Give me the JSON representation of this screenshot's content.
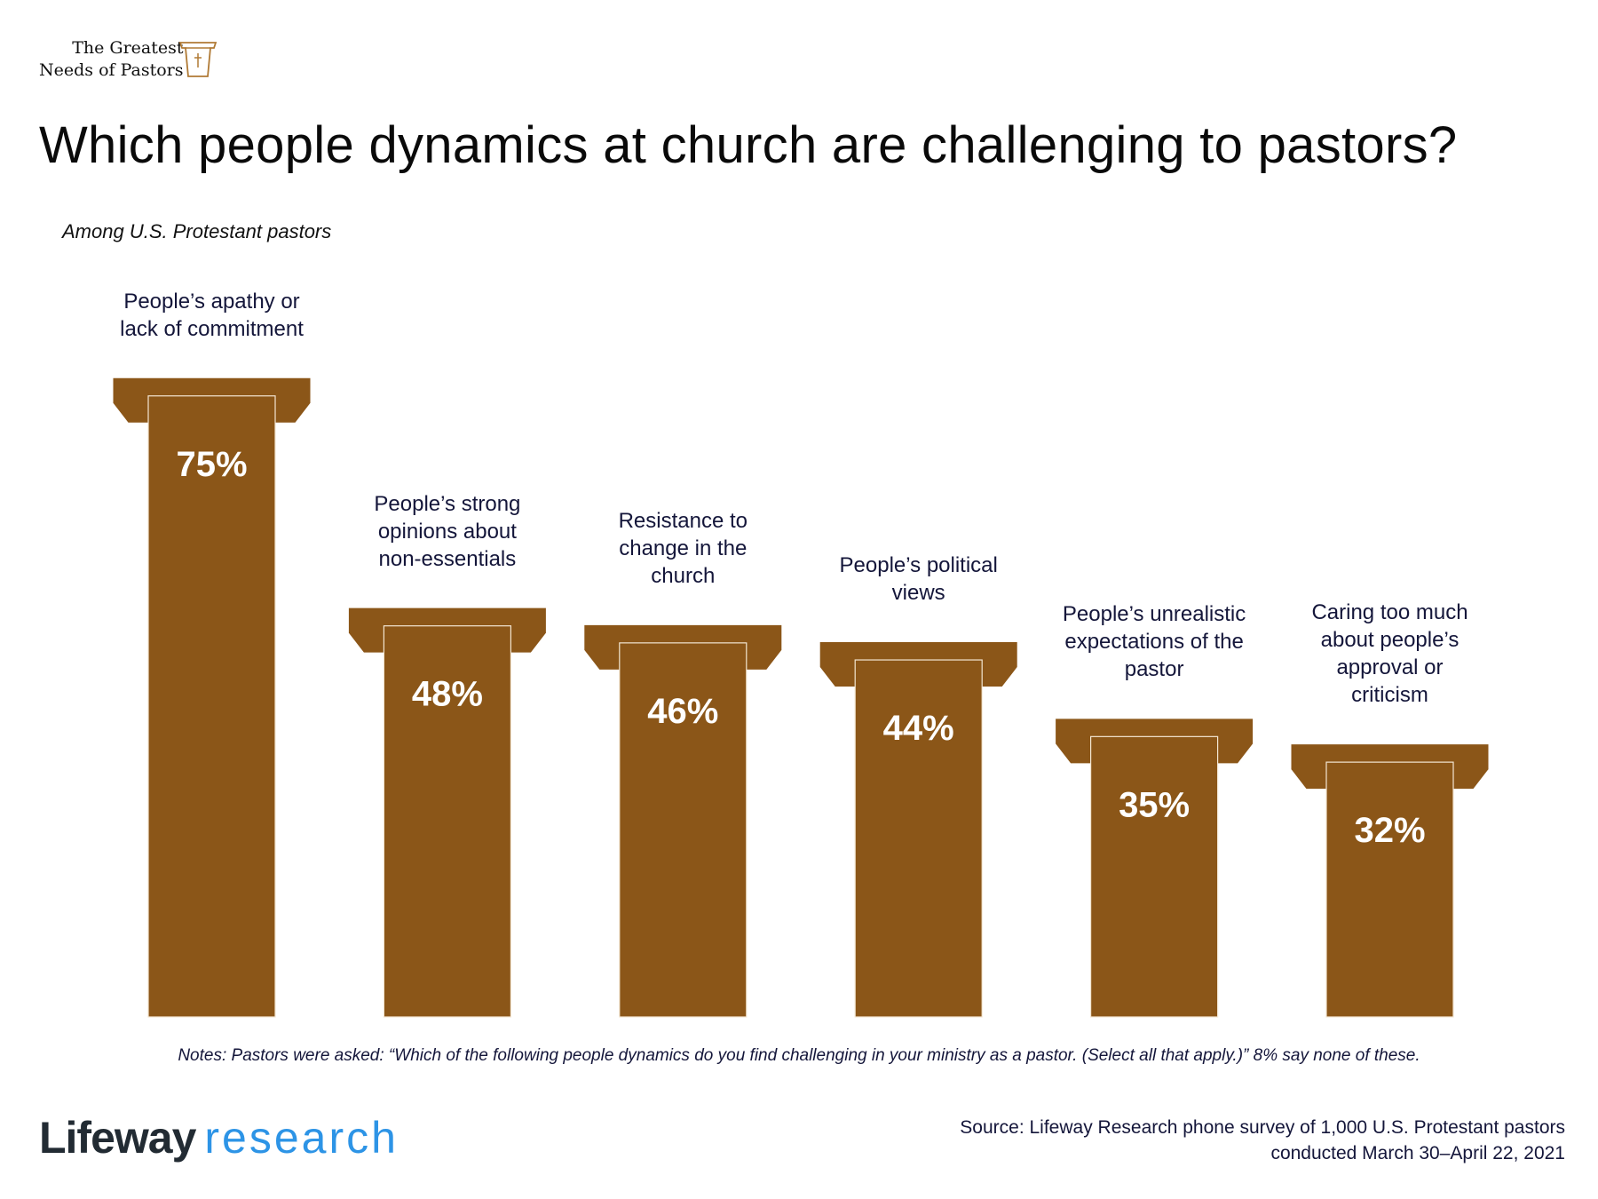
{
  "header": {
    "brand_line1": "The Greatest",
    "brand_line2": "Needs of Pastors",
    "title": "Which people dynamics at church are challenging to pastors?",
    "subtitle": "Among U.S. Protestant pastors"
  },
  "colors": {
    "bar": "#8b5618",
    "bar_edge": "#f3e6d2",
    "text": "#14163a",
    "logo_dark": "#222b33",
    "logo_blue": "#2d94e6"
  },
  "chart_data": {
    "type": "bar",
    "title": "Which people dynamics at church are challenging to pastors?",
    "subtitle": "Among U.S. Protestant pastors",
    "categories": [
      [
        "People’s apathy or",
        "lack of commitment"
      ],
      [
        "People’s strong",
        "opinions about",
        "non-essentials"
      ],
      [
        "Resistance to",
        "change in the",
        "church"
      ],
      [
        "People’s political",
        "views"
      ],
      [
        "People’s unrealistic",
        "expectations of the",
        "pastor"
      ],
      [
        "Caring too much",
        "about people’s",
        "approval or",
        "criticism"
      ]
    ],
    "values": [
      75,
      48,
      46,
      44,
      35,
      32
    ],
    "value_labels": [
      "75%",
      "48%",
      "46%",
      "44%",
      "35%",
      "32%"
    ],
    "unit": "%",
    "ylim": [
      0,
      75
    ],
    "grid": false
  },
  "footer": {
    "notes": "Notes: Pastors were asked: “Which of the following people dynamics do you find challenging in your ministry as a pastor. (Select all that apply.)” 8% say none of these.",
    "logo_word1": "Lifeway",
    "logo_word2": "research",
    "source_line1": "Source: Lifeway Research phone survey of 1,000 U.S. Protestant pastors",
    "source_line2": "conducted March 30–April 22, 2021"
  }
}
